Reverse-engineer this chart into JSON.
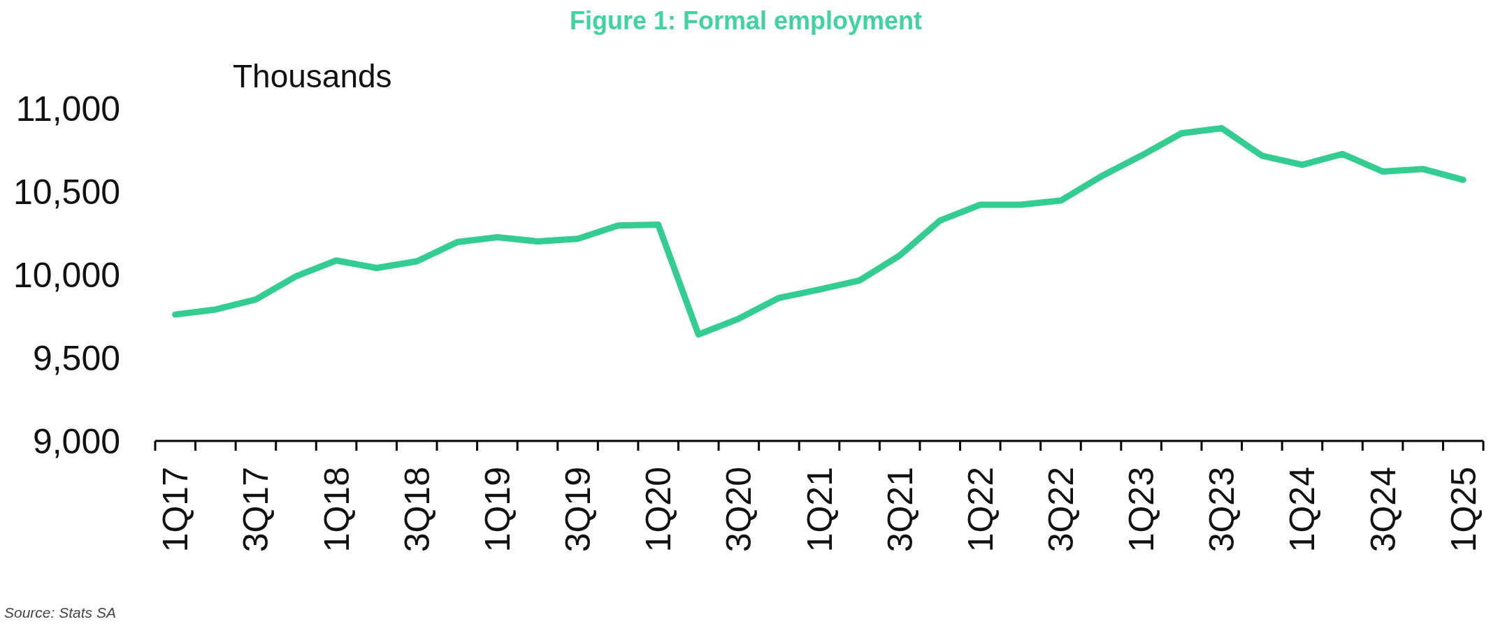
{
  "chart_data": {
    "type": "line",
    "title": "Figure 1: Formal employment",
    "ylabel": "Thousands",
    "annotations": [
      "Source: Stats SA"
    ],
    "categories": [
      "1Q17",
      null,
      "3Q17",
      null,
      "1Q18",
      null,
      "3Q18",
      null,
      "1Q19",
      null,
      "3Q19",
      null,
      "1Q20",
      null,
      "3Q20",
      null,
      "1Q21",
      null,
      "3Q21",
      null,
      "1Q22",
      null,
      "3Q22",
      null,
      "1Q23",
      null,
      "3Q23",
      null,
      "1Q24",
      null,
      "3Q24",
      null,
      "1Q25"
    ],
    "series": [
      {
        "color": "#33cc91",
        "values": [
          9760,
          9790,
          9850,
          9990,
          10085,
          10040,
          10080,
          10195,
          10225,
          10200,
          10215,
          10295,
          10300,
          9640,
          9735,
          9860,
          9910,
          9965,
          10115,
          10325,
          10420,
          10420,
          10445,
          10590,
          10715,
          10850,
          10880,
          10715,
          10660,
          10725,
          10620,
          10635,
          10570
        ]
      }
    ],
    "ylim": [
      9000,
      11000
    ],
    "yticks": [
      {
        "value": 9000,
        "label": "9,000"
      },
      {
        "value": 9500,
        "label": "9,500"
      },
      {
        "value": 10000,
        "label": "10,000"
      },
      {
        "value": 10500,
        "label": "10,500"
      },
      {
        "value": 11000,
        "label": "11,000"
      }
    ]
  }
}
